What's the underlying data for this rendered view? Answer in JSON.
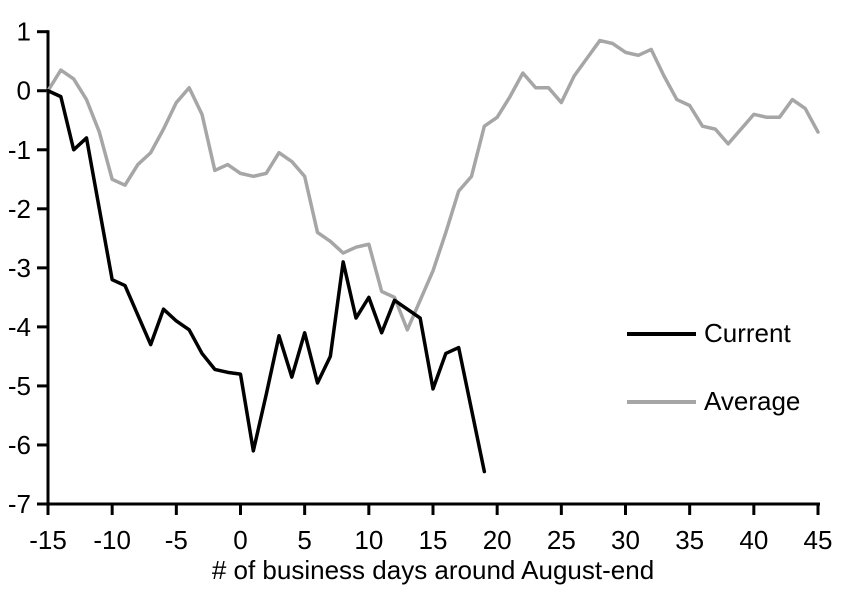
{
  "chart_data": {
    "type": "line",
    "title": "",
    "xlabel": "# of business days around August-end",
    "ylabel": "",
    "xlim": [
      -15,
      45
    ],
    "ylim": [
      -7,
      1
    ],
    "x_ticks": [
      -15,
      -10,
      -5,
      0,
      5,
      10,
      15,
      20,
      25,
      30,
      35,
      40,
      45
    ],
    "y_ticks": [
      1,
      0,
      -1,
      -2,
      -3,
      -4,
      -5,
      -6,
      -7
    ],
    "grid": false,
    "legend_position": "right-middle",
    "axis_color": "#000000",
    "series": [
      {
        "name": "Current",
        "color": "#000000",
        "x": [
          -15,
          -14,
          -13,
          -12,
          -11,
          -10,
          -9,
          -8,
          -7,
          -6,
          -5,
          -4,
          -3,
          -2,
          -1,
          0,
          1,
          2,
          3,
          4,
          5,
          6,
          7,
          8,
          9,
          10,
          11,
          12,
          13,
          14,
          15,
          16,
          17,
          18,
          19
        ],
        "values": [
          0,
          -0.1,
          -1.0,
          -0.8,
          -2.0,
          -3.2,
          -3.3,
          -3.8,
          -4.3,
          -3.7,
          -3.9,
          -4.05,
          -4.45,
          -4.72,
          -4.77,
          -4.8,
          -6.1,
          -5.15,
          -4.15,
          -4.85,
          -4.1,
          -4.95,
          -4.5,
          -2.9,
          -3.85,
          -3.5,
          -4.1,
          -3.55,
          -3.7,
          -3.85,
          -5.05,
          -4.45,
          -4.35,
          -5.4,
          -6.45
        ]
      },
      {
        "name": "Average",
        "color": "#A6A6A6",
        "x": [
          -15,
          -14,
          -13,
          -12,
          -11,
          -10,
          -9,
          -8,
          -7,
          -6,
          -5,
          -4,
          -3,
          -2,
          -1,
          0,
          1,
          2,
          3,
          4,
          5,
          6,
          7,
          8,
          9,
          10,
          11,
          12,
          13,
          14,
          15,
          16,
          17,
          18,
          19,
          20,
          21,
          22,
          23,
          24,
          25,
          26,
          27,
          28,
          29,
          30,
          31,
          32,
          33,
          34,
          35,
          36,
          37,
          38,
          39,
          40,
          41,
          42,
          43,
          44,
          45
        ],
        "values": [
          0,
          0.35,
          0.2,
          -0.15,
          -0.7,
          -1.5,
          -1.6,
          -1.25,
          -1.05,
          -0.65,
          -0.2,
          0.05,
          -0.4,
          -1.35,
          -1.25,
          -1.4,
          -1.45,
          -1.4,
          -1.05,
          -1.2,
          -1.45,
          -2.4,
          -2.55,
          -2.75,
          -2.65,
          -2.6,
          -3.4,
          -3.5,
          -4.05,
          -3.55,
          -3.05,
          -2.4,
          -1.7,
          -1.45,
          -0.6,
          -0.45,
          -0.1,
          0.3,
          0.05,
          0.05,
          -0.2,
          0.25,
          0.55,
          0.85,
          0.8,
          0.65,
          0.6,
          0.7,
          0.25,
          -0.15,
          -0.25,
          -0.6,
          -0.65,
          -0.9,
          -0.65,
          -0.4,
          -0.45,
          -0.45,
          -0.15,
          -0.3,
          -0.7
        ]
      }
    ]
  },
  "legend": {
    "current_label": "Current",
    "average_label": "Average"
  }
}
